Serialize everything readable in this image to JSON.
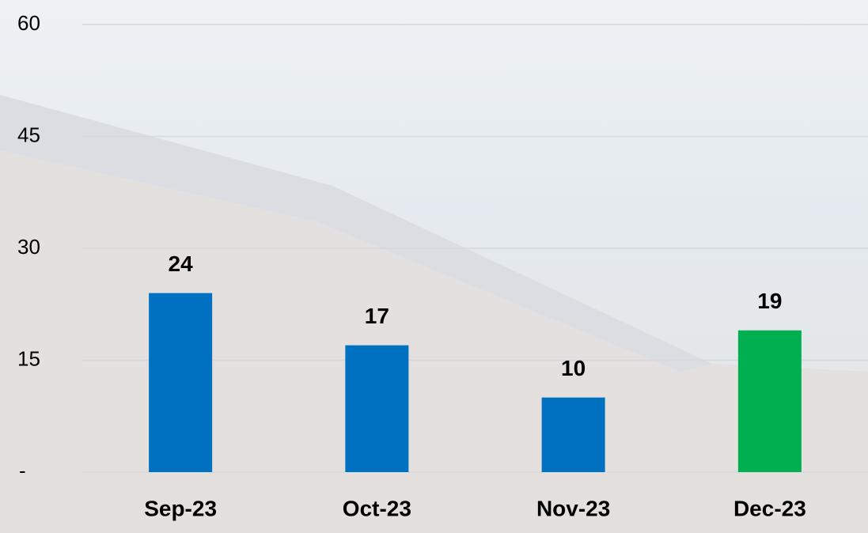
{
  "chart_data": {
    "type": "bar",
    "categories": [
      "Sep-23",
      "Oct-23",
      "Nov-23",
      "Dec-23"
    ],
    "values": [
      24,
      17,
      10,
      19
    ],
    "colors": [
      "#0070c0",
      "#0070c0",
      "#0070c0",
      "#00b050"
    ],
    "ylim": [
      0,
      60
    ],
    "yticks": [
      {
        "value": 0,
        "label": "-"
      },
      15,
      30,
      45,
      60
    ],
    "grid": true
  }
}
